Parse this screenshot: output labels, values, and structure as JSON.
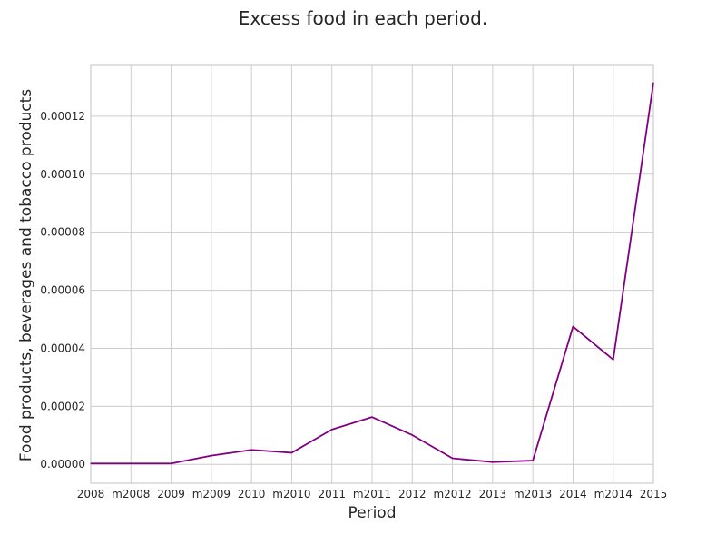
{
  "chart_data": {
    "type": "line",
    "title": "Excess food in each period.",
    "xlabel": "Period",
    "ylabel": "Food products, beverages and tobacco products",
    "categories": [
      "2008",
      "m2008",
      "2009",
      "m2009",
      "2010",
      "m2010",
      "2011",
      "m2011",
      "2012",
      "m2012",
      "2013",
      "m2013",
      "2014",
      "m2014",
      "2015"
    ],
    "series": [
      {
        "color": "#800080",
        "values": [
          3e-07,
          3e-07,
          3e-07,
          3e-06,
          5e-06,
          4e-06,
          1.2e-05,
          1.63e-05,
          1.01e-05,
          2.1e-06,
          8e-07,
          1.3e-06,
          4.75e-05,
          3.61e-05,
          0.0001315
        ]
      }
    ],
    "ylim": [
      -6.5e-06,
      0.0001375
    ],
    "yticks": [
      0.0,
      2e-05,
      4e-05,
      6e-05,
      8e-05,
      0.0001,
      0.00012
    ],
    "ytick_labels": [
      "0.00000",
      "0.00002",
      "0.00004",
      "0.00006",
      "0.00008",
      "0.00010",
      "0.00012"
    ],
    "grid": true,
    "legend": "none"
  }
}
